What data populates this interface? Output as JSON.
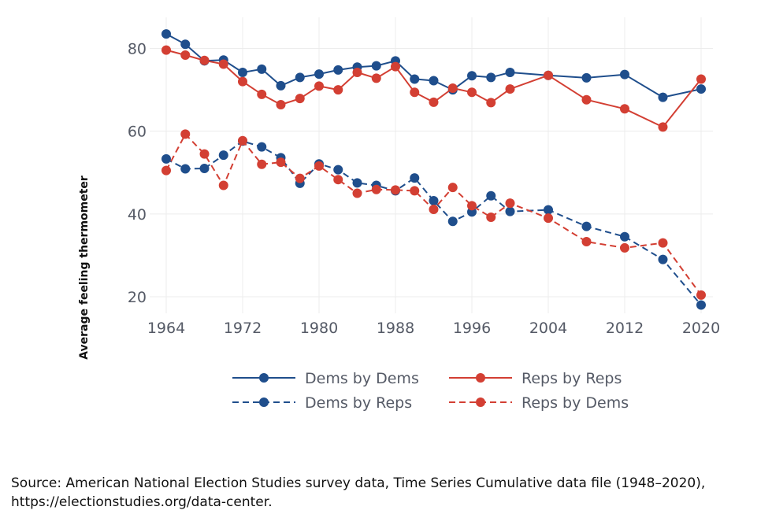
{
  "chart_data": {
    "type": "line",
    "title": "",
    "xlabel": "",
    "ylabel": "Average feeling thermometer",
    "xlim": [
      1964,
      2020
    ],
    "ylim": [
      16,
      86
    ],
    "x_ticks": [
      "1964",
      "1972",
      "1980",
      "1988",
      "1996",
      "2004",
      "2012",
      "2020"
    ],
    "y_ticks": [
      "20",
      "40",
      "60",
      "80"
    ],
    "grid": true,
    "legend_position": "bottom",
    "series": [
      {
        "name": "Dems by Dems",
        "color": "#1f4e8c",
        "linestyle": "solid",
        "x": [
          1964,
          1966,
          1968,
          1970,
          1972,
          1974,
          1976,
          1978,
          1980,
          1982,
          1984,
          1986,
          1988,
          1990,
          1992,
          1994,
          1996,
          1998,
          2000,
          2004,
          2008,
          2012,
          2016,
          2020
        ],
        "y": [
          83.5,
          81.0,
          77.0,
          77.2,
          74.2,
          75.0,
          71.0,
          73.0,
          73.8,
          74.8,
          75.5,
          75.8,
          77.0,
          72.6,
          72.2,
          70.0,
          73.4,
          73.0,
          74.2,
          73.5,
          72.9,
          73.7,
          68.2,
          70.2
        ]
      },
      {
        "name": "Reps by Reps",
        "color": "#d33f33",
        "linestyle": "solid",
        "x": [
          1964,
          1966,
          1968,
          1970,
          1972,
          1974,
          1976,
          1978,
          1980,
          1982,
          1984,
          1986,
          1988,
          1990,
          1992,
          1994,
          1996,
          1998,
          2000,
          2004,
          2008,
          2012,
          2016,
          2020
        ],
        "y": [
          79.6,
          78.4,
          77.1,
          76.2,
          72.0,
          68.9,
          66.4,
          67.9,
          70.9,
          70.0,
          74.2,
          72.8,
          75.6,
          69.4,
          67.0,
          70.4,
          69.4,
          66.9,
          70.2,
          73.5,
          67.6,
          65.4,
          61.0,
          72.6
        ]
      },
      {
        "name": "Dems by Reps",
        "color": "#1f4e8c",
        "linestyle": "dashed",
        "x": [
          1964,
          1966,
          1968,
          1970,
          1972,
          1974,
          1976,
          1978,
          1980,
          1982,
          1984,
          1986,
          1988,
          1990,
          1992,
          1994,
          1996,
          1998,
          2000,
          2004,
          2008,
          2012,
          2016,
          2020
        ],
        "y": [
          53.3,
          50.9,
          51.0,
          54.2,
          57.6,
          56.2,
          53.6,
          47.4,
          52.1,
          50.7,
          47.5,
          46.9,
          45.6,
          48.7,
          43.2,
          38.2,
          40.5,
          44.4,
          40.6,
          41.0,
          37.0,
          34.5,
          29.0,
          18.0
        ]
      },
      {
        "name": "Reps by Dems",
        "color": "#d33f33",
        "linestyle": "dashed",
        "x": [
          1964,
          1966,
          1968,
          1970,
          1972,
          1974,
          1976,
          1978,
          1980,
          1982,
          1984,
          1986,
          1988,
          1990,
          1992,
          1994,
          1996,
          1998,
          2000,
          2004,
          2008,
          2012,
          2016,
          2020
        ],
        "y": [
          50.5,
          59.3,
          54.5,
          46.9,
          57.7,
          52.0,
          52.5,
          48.6,
          51.6,
          48.3,
          45.0,
          45.9,
          45.8,
          45.6,
          41.1,
          46.4,
          42.0,
          39.2,
          42.6,
          39.0,
          33.3,
          31.8,
          33.0,
          20.4
        ]
      }
    ]
  },
  "source": {
    "line1": "Source: American National Election Studies survey data, Time Series Cumulative data file (1948–2020),",
    "line2": "https://electionstudies.org/data-center."
  }
}
